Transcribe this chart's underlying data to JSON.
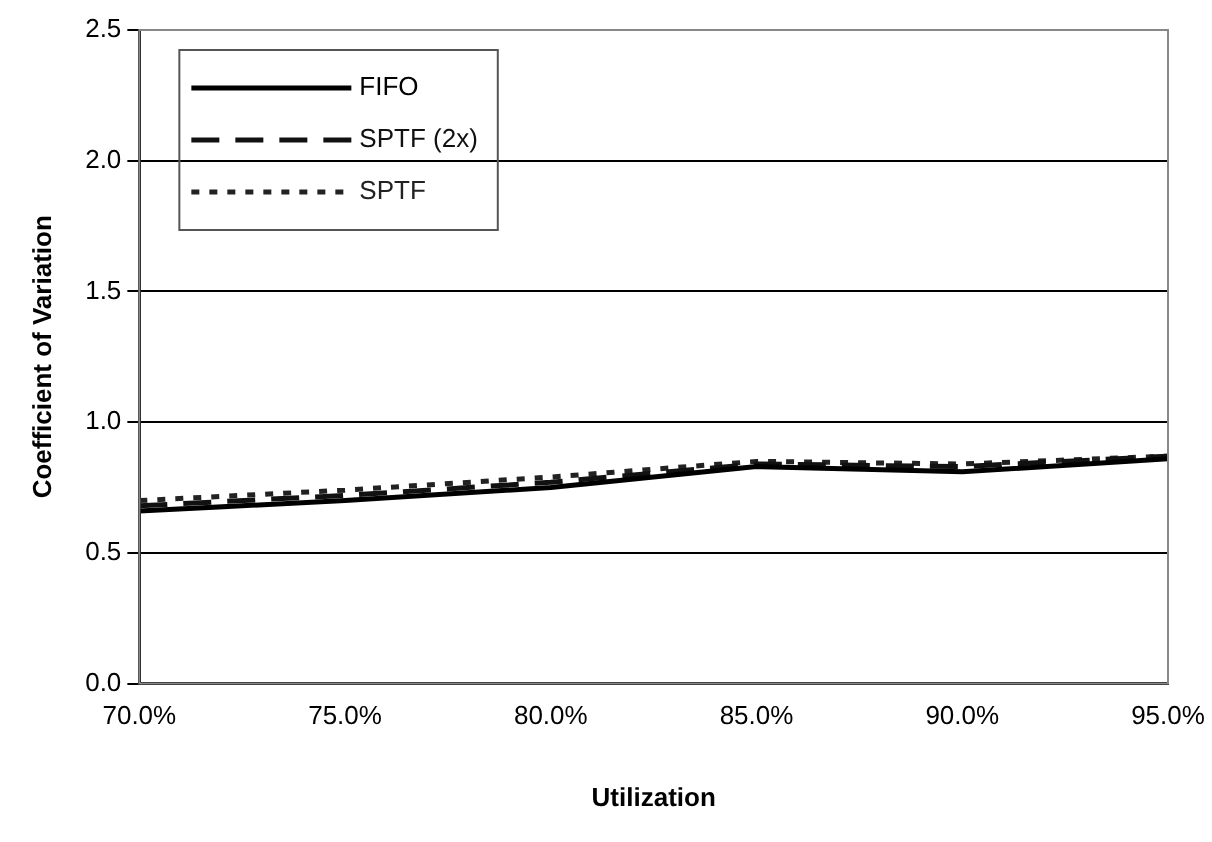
{
  "chart_data": {
    "type": "line",
    "xlabel": "Utilization",
    "ylabel": "Coefficient of Variation",
    "x": [
      70,
      75,
      80,
      85,
      90,
      95
    ],
    "series": [
      {
        "name": "FIFO",
        "color": "#000000",
        "line_style": "solid",
        "values": [
          0.66,
          0.7,
          0.75,
          0.83,
          0.81,
          0.86
        ]
      },
      {
        "name": "SPTF (2x)",
        "color": "#111111",
        "line_style": "dashed",
        "values": [
          0.68,
          0.72,
          0.77,
          0.84,
          0.83,
          0.87
        ]
      },
      {
        "name": "SPTF",
        "color": "#222222",
        "line_style": "dotted",
        "values": [
          0.7,
          0.74,
          0.79,
          0.85,
          0.84,
          0.87
        ]
      }
    ],
    "xlim": [
      70,
      95
    ],
    "xticks": [
      {
        "value": 70,
        "label": "70.0%"
      },
      {
        "value": 75,
        "label": "75.0%"
      },
      {
        "value": 80,
        "label": "80.0%"
      },
      {
        "value": 85,
        "label": "85.0%"
      },
      {
        "value": 90,
        "label": "90.0%"
      },
      {
        "value": 95,
        "label": "95.0%"
      }
    ],
    "ylim": [
      0,
      2.5
    ],
    "yticks": [
      {
        "value": 0,
        "label": "0.0"
      },
      {
        "value": 0.5,
        "label": "0.5"
      },
      {
        "value": 1,
        "label": "1.0"
      },
      {
        "value": 1.5,
        "label": "1.5"
      },
      {
        "value": 2,
        "label": "2.0"
      },
      {
        "value": 2.5,
        "label": "2.5"
      }
    ],
    "grid": "y",
    "legend": "top left",
    "marker": "none"
  }
}
